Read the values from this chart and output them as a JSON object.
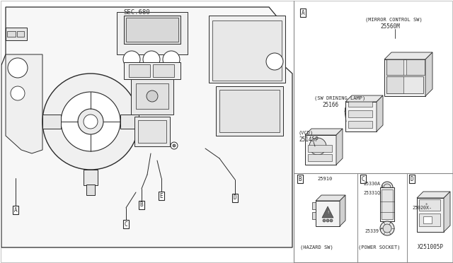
{
  "bg_color": "#ffffff",
  "lc": "#2a2a2a",
  "gc": "#888888",
  "fc_light": "#f5f5f5",
  "fc_gray": "#e8e8e8",
  "fc_med": "#d8d8d8",
  "sec_label": "SEC.680",
  "label_A": "A",
  "label_B": "B",
  "label_C": "C",
  "label_D": "D",
  "label_E": "E",
  "part_mirror": "(MIRROR CONTROL SW)",
  "part_mirror_num": "25560M",
  "part_driving": "(SW DRINING LAMP)",
  "part_driving_num": "25166",
  "part_vcd": "(VCD)",
  "part_vcd_num": "25145P",
  "part_hazard": "(HAZARD SW)",
  "part_hazard_num": "25910",
  "part_power": "(POWER SOCKET)",
  "part_p25330": "25330A",
  "part_p25331": "25331Q",
  "part_p25339": "25339",
  "part_d_num": "25020X",
  "watermark": "X251005P"
}
